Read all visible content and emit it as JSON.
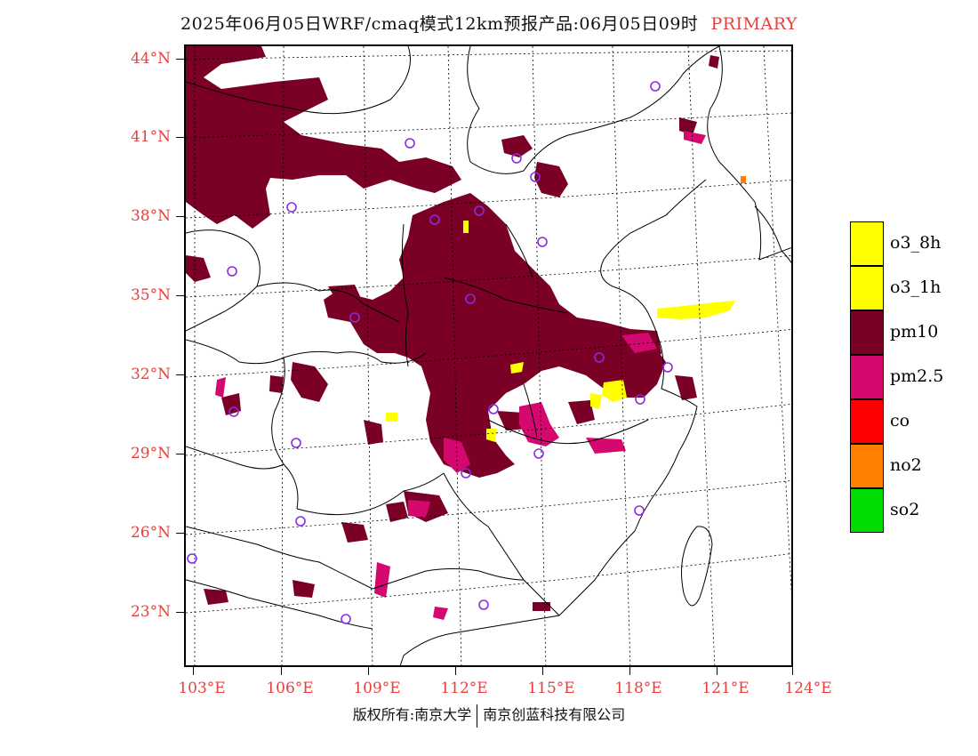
{
  "header": {
    "title": "2025年06月05日WRF/cmaq模式12km预报产品:06月05日09时",
    "mode": "PRIMARY"
  },
  "axes": {
    "lat_labels": [
      "44°N",
      "41°N",
      "38°N",
      "35°N",
      "32°N",
      "29°N",
      "26°N",
      "23°N"
    ],
    "lon_labels": [
      "103°E",
      "106°E",
      "109°E",
      "112°E",
      "115°E",
      "118°E",
      "121°E",
      "124°E"
    ]
  },
  "legend": {
    "items": [
      {
        "label": "o3_8h",
        "color": "#ffff00"
      },
      {
        "label": "o3_1h",
        "color": "#ffff00"
      },
      {
        "label": "pm10",
        "color": "#7a0026"
      },
      {
        "label": "pm2.5",
        "color": "#d4086f"
      },
      {
        "label": "co",
        "color": "#ff0000"
      },
      {
        "label": "no2",
        "color": "#ff8000"
      },
      {
        "label": "so2",
        "color": "#00dd00"
      }
    ]
  },
  "footer": {
    "left": "版权所有:南京大学",
    "right": "南京创蓝科技有限公司"
  }
}
